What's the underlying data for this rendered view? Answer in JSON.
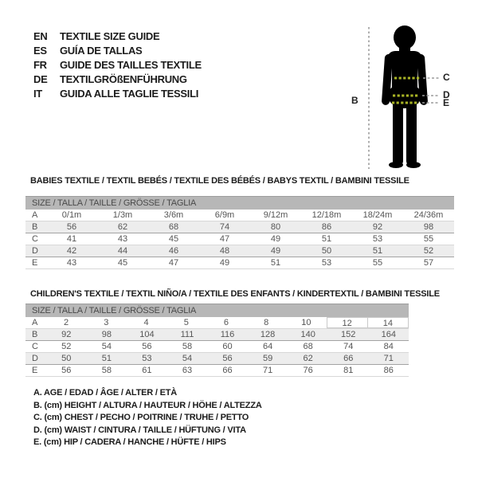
{
  "languages": [
    {
      "code": "EN",
      "label": "TEXTILE SIZE GUIDE"
    },
    {
      "code": "ES",
      "label": "GUÍA DE TALLAS"
    },
    {
      "code": "FR",
      "label": "GUIDE DES TAILLES TEXTILE"
    },
    {
      "code": "DE",
      "label": "TEXTILGRÖßENFÜHRUNG"
    },
    {
      "code": "IT",
      "label": "GUIDA ALLE TAGLIE TESSILI"
    }
  ],
  "figure": {
    "labels": {
      "height": "B",
      "chest": "C",
      "waist": "D",
      "hip": "E"
    },
    "silhouette_color": "#000000",
    "measure_dash_color": "#a8b325",
    "guide_dash_color": "#9b9b9b"
  },
  "babies": {
    "title": "BABIES TEXTILE / TEXTIL BEBÉS / TEXTILE DES BÉBÉS / BABYS TEXTIL / BAMBINI TESSILE",
    "size_header": "SIZE / TALLA / TAILLE / GRÖSSE / TAGLIA",
    "rows": [
      {
        "label": "A",
        "values": [
          "0/1m",
          "1/3m",
          "3/6m",
          "6/9m",
          "9/12m",
          "12/18m",
          "18/24m",
          "24/36m"
        ]
      },
      {
        "label": "B",
        "values": [
          "56",
          "62",
          "68",
          "74",
          "80",
          "86",
          "92",
          "98"
        ]
      },
      {
        "label": "C",
        "values": [
          "41",
          "43",
          "45",
          "47",
          "49",
          "51",
          "53",
          "55"
        ]
      },
      {
        "label": "D",
        "values": [
          "42",
          "44",
          "46",
          "48",
          "49",
          "50",
          "51",
          "52"
        ]
      },
      {
        "label": "E",
        "values": [
          "43",
          "45",
          "47",
          "49",
          "51",
          "53",
          "55",
          "57"
        ]
      }
    ]
  },
  "children": {
    "title": "CHILDREN'S TEXTILE / TEXTIL NIÑO/A / TEXTILE DES ENFANTS / KINDERTEXTIL / BAMBINI TESSILE",
    "size_header": "SIZE / TALLA / TAILLE / GRÖSSE / TAGLIA",
    "highlight": {
      "row": "A",
      "value": "12"
    },
    "rows": [
      {
        "label": "A",
        "values": [
          "2",
          "3",
          "4",
          "5",
          "6",
          "8",
          "10",
          "12",
          "14"
        ]
      },
      {
        "label": "B",
        "values": [
          "92",
          "98",
          "104",
          "111",
          "116",
          "128",
          "140",
          "152",
          "164"
        ]
      },
      {
        "label": "C",
        "values": [
          "52",
          "54",
          "56",
          "58",
          "60",
          "64",
          "68",
          "74",
          "84"
        ]
      },
      {
        "label": "D",
        "values": [
          "50",
          "51",
          "53",
          "54",
          "56",
          "59",
          "62",
          "66",
          "71"
        ]
      },
      {
        "label": "E",
        "values": [
          "56",
          "58",
          "61",
          "63",
          "66",
          "71",
          "76",
          "81",
          "86"
        ]
      }
    ]
  },
  "legend": [
    "A. AGE / EDAD / ÂGE / ALTER / ETÀ",
    "B. (cm) HEIGHT / ALTURA / HAUTEUR / HÖHE / ALTEZZA",
    "C. (cm) CHEST / PECHO / POITRINE / TRUHE / PETTO",
    "D. (cm) WAIST / CINTURA / TAILLE / HÜFTUNG / VITA",
    "E. (cm) HIP / CADERA / HANCHE / HÜFTE / HIPS"
  ],
  "colors": {
    "header_bar": "#b7b7b7",
    "row_shade": "#ededed",
    "table_text": "#555555",
    "text": "#1b1b1b"
  }
}
